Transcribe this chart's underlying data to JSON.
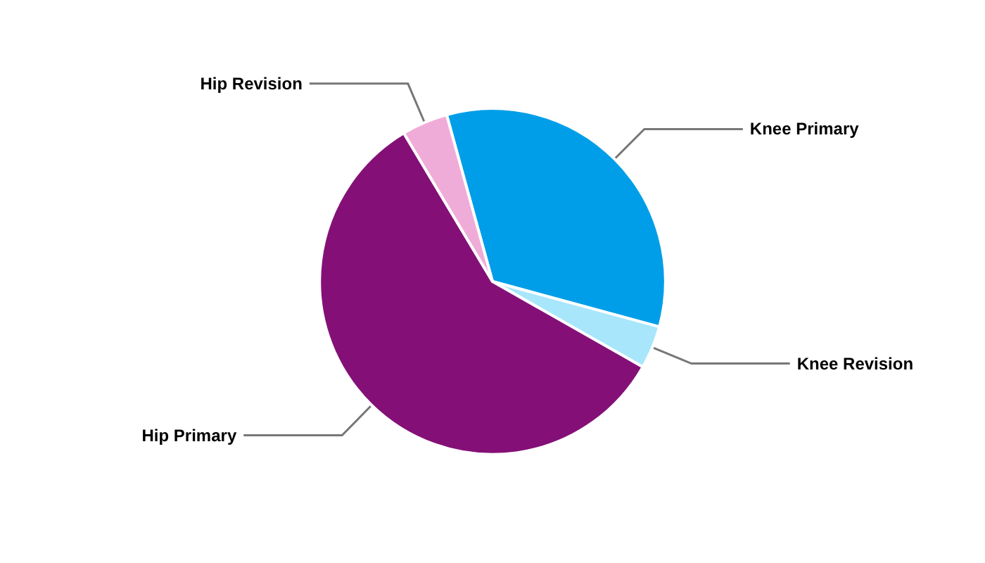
{
  "chart_data": {
    "type": "pie",
    "categories": [
      "Knee Primary",
      "Knee Revision",
      "Hip Primary",
      "Hip Revision"
    ],
    "values": [
      33.5,
      4,
      58.2,
      4.3
    ],
    "colors": [
      "#009ee8",
      "#a8e6fb",
      "#841077",
      "#f0acd8"
    ],
    "legend": false
  }
}
